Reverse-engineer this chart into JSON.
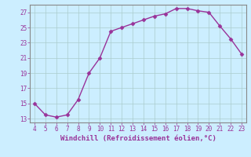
{
  "x": [
    4,
    5,
    6,
    7,
    8,
    9,
    10,
    11,
    12,
    13,
    14,
    15,
    16,
    17,
    18,
    19,
    20,
    21,
    22,
    23
  ],
  "y": [
    15.0,
    13.5,
    13.2,
    13.5,
    15.5,
    19.0,
    21.0,
    24.5,
    25.0,
    25.5,
    26.0,
    26.5,
    26.8,
    27.5,
    27.5,
    27.2,
    27.0,
    25.2,
    23.5,
    21.5
  ],
  "xlim": [
    3.6,
    23.4
  ],
  "ylim": [
    12.5,
    28.0
  ],
  "xticks": [
    4,
    5,
    6,
    7,
    8,
    9,
    10,
    11,
    12,
    13,
    14,
    15,
    16,
    17,
    18,
    19,
    20,
    21,
    22,
    23
  ],
  "yticks": [
    13,
    15,
    17,
    19,
    21,
    23,
    25,
    27
  ],
  "xlabel": "Windchill (Refroidissement éolien,°C)",
  "line_color": "#993399",
  "marker_color": "#993399",
  "bg_color": "#cceeff",
  "grid_color": "#aacccc",
  "border_color": "#888888",
  "tick_color": "#993399",
  "label_color": "#993399",
  "tick_fontsize": 5.5,
  "xlabel_fontsize": 6.5
}
